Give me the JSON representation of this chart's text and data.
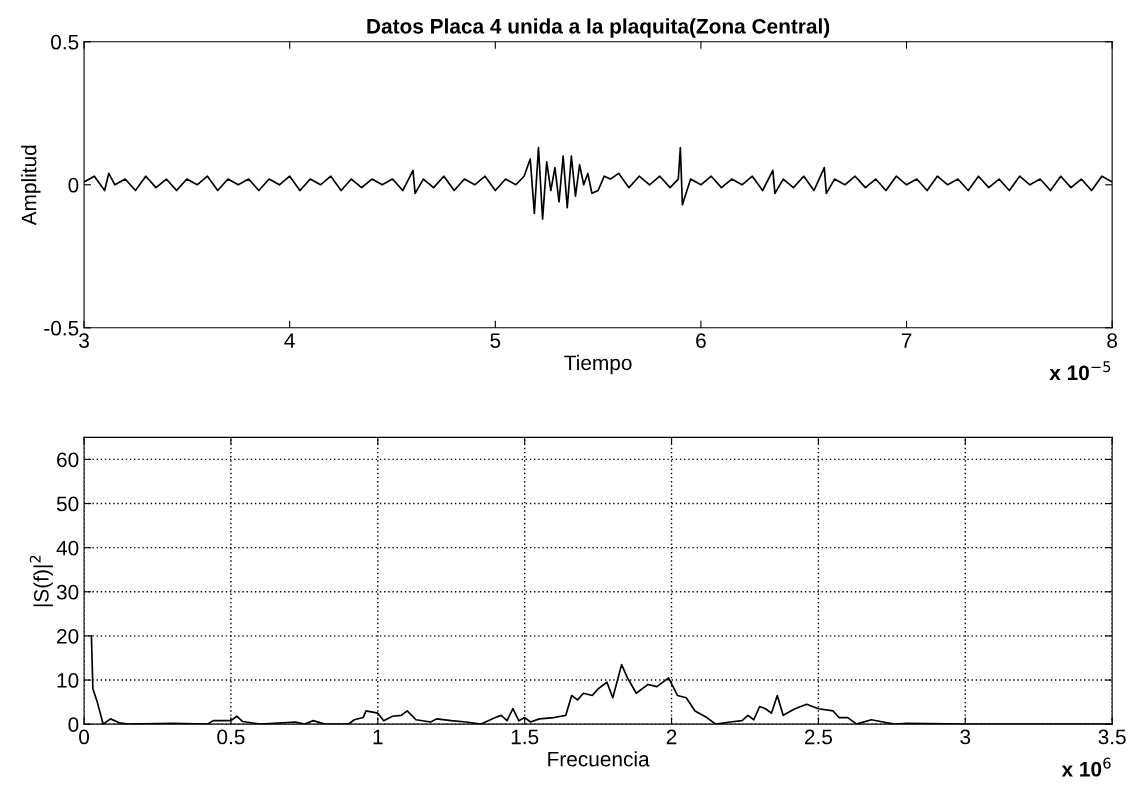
{
  "chart_data": [
    {
      "type": "line",
      "title": "Datos Placa 4 unida a la plaquita(Zona Central)",
      "xlabel": "Tiempo",
      "ylabel": "Amplitud",
      "annotations": [
        "x 10$^{−5}$"
      ],
      "xlim": [
        3,
        8
      ],
      "xticks": [
        3,
        4,
        5,
        6,
        7,
        8
      ],
      "ylim": [
        -0.5,
        0.5
      ],
      "yticks": [
        -0.5,
        0,
        0.5
      ],
      "grid": false,
      "series": [
        {
          "color": "#000000",
          "x": [
            3.0,
            3.05,
            3.1,
            3.12,
            3.15,
            3.2,
            3.25,
            3.3,
            3.35,
            3.4,
            3.45,
            3.5,
            3.55,
            3.6,
            3.65,
            3.7,
            3.75,
            3.8,
            3.85,
            3.9,
            3.95,
            4.0,
            4.05,
            4.1,
            4.15,
            4.2,
            4.25,
            4.3,
            4.35,
            4.4,
            4.45,
            4.5,
            4.55,
            4.6,
            4.61,
            4.65,
            4.7,
            4.75,
            4.8,
            4.85,
            4.9,
            4.95,
            5.0,
            5.05,
            5.1,
            5.14,
            5.17,
            5.19,
            5.21,
            5.23,
            5.25,
            5.27,
            5.29,
            5.31,
            5.33,
            5.35,
            5.37,
            5.39,
            5.41,
            5.43,
            5.45,
            5.47,
            5.5,
            5.53,
            5.56,
            5.6,
            5.65,
            5.7,
            5.75,
            5.8,
            5.85,
            5.89,
            5.9,
            5.91,
            5.95,
            6.0,
            6.05,
            6.1,
            6.15,
            6.2,
            6.25,
            6.3,
            6.35,
            6.36,
            6.4,
            6.45,
            6.5,
            6.55,
            6.6,
            6.61,
            6.65,
            6.7,
            6.75,
            6.8,
            6.85,
            6.9,
            6.95,
            7.0,
            7.05,
            7.1,
            7.15,
            7.2,
            7.25,
            7.3,
            7.35,
            7.4,
            7.45,
            7.5,
            7.55,
            7.6,
            7.65,
            7.7,
            7.75,
            7.8,
            7.85,
            7.9,
            7.95,
            8.0
          ],
          "values": [
            0.01,
            0.03,
            -0.02,
            0.04,
            0.0,
            0.02,
            -0.02,
            0.03,
            -0.01,
            0.02,
            -0.02,
            0.02,
            0.0,
            0.03,
            -0.02,
            0.02,
            0.0,
            0.02,
            -0.02,
            0.02,
            0.0,
            0.03,
            -0.02,
            0.02,
            0.0,
            0.03,
            -0.02,
            0.02,
            -0.01,
            0.02,
            0.0,
            0.02,
            -0.02,
            0.05,
            -0.03,
            0.02,
            -0.01,
            0.03,
            -0.02,
            0.02,
            0.0,
            0.03,
            -0.02,
            0.02,
            0.0,
            0.03,
            0.09,
            -0.1,
            0.13,
            -0.12,
            0.08,
            -0.02,
            0.06,
            -0.06,
            0.1,
            -0.08,
            0.1,
            -0.04,
            0.07,
            0.0,
            0.04,
            -0.03,
            -0.02,
            0.03,
            0.02,
            0.04,
            -0.01,
            0.03,
            0.0,
            0.03,
            -0.01,
            0.02,
            0.13,
            -0.07,
            0.02,
            0.0,
            0.03,
            -0.01,
            0.02,
            0.0,
            0.03,
            -0.02,
            0.05,
            -0.03,
            0.02,
            -0.01,
            0.03,
            -0.02,
            0.06,
            -0.03,
            0.02,
            0.0,
            0.03,
            -0.01,
            0.02,
            -0.02,
            0.03,
            0.0,
            0.02,
            -0.02,
            0.03,
            0.0,
            0.02,
            -0.02,
            0.03,
            -0.01,
            0.02,
            -0.02,
            0.03,
            0.0,
            0.02,
            -0.02,
            0.03,
            -0.01,
            0.02,
            -0.02,
            0.03,
            0.01
          ]
        }
      ]
    },
    {
      "type": "line",
      "xlabel": "Frecuencia",
      "ylabel": "|S(f)|$^{2}$",
      "annotations": [
        "x 10$^{6}$"
      ],
      "xlim": [
        0,
        3.5
      ],
      "xticks": [
        0,
        0.5,
        1,
        1.5,
        2,
        2.5,
        3,
        3.5
      ],
      "ylim": [
        0,
        65
      ],
      "yticks": [
        0,
        10,
        20,
        30,
        40,
        50,
        60
      ],
      "grid": true,
      "series": [
        {
          "color": "#000000",
          "x": [
            0.025,
            0.03,
            0.045,
            0.065,
            0.09,
            0.12,
            0.15,
            0.3,
            0.42,
            0.44,
            0.5,
            0.52,
            0.54,
            0.58,
            0.6,
            0.72,
            0.75,
            0.78,
            0.82,
            0.9,
            0.92,
            0.95,
            0.96,
            1.0,
            1.02,
            1.05,
            1.08,
            1.1,
            1.13,
            1.18,
            1.2,
            1.25,
            1.3,
            1.35,
            1.4,
            1.42,
            1.44,
            1.46,
            1.48,
            1.5,
            1.52,
            1.55,
            1.6,
            1.64,
            1.66,
            1.68,
            1.7,
            1.73,
            1.75,
            1.78,
            1.8,
            1.83,
            1.85,
            1.88,
            1.92,
            1.95,
            1.99,
            2.02,
            2.05,
            2.08,
            2.12,
            2.15,
            2.2,
            2.24,
            2.26,
            2.28,
            2.3,
            2.32,
            2.34,
            2.36,
            2.38,
            2.42,
            2.46,
            2.5,
            2.55,
            2.57,
            2.6,
            2.63,
            2.68,
            2.72,
            2.76,
            2.8,
            3.0,
            3.5
          ],
          "values": [
            20,
            8,
            5,
            0,
            1.2,
            0.3,
            0,
            0.2,
            0,
            0.8,
            0.8,
            1.8,
            0.6,
            0.2,
            0,
            0.5,
            0,
            0.8,
            0,
            0,
            1,
            1.5,
            3,
            2.5,
            0.8,
            1.8,
            2,
            3,
            1,
            0.5,
            1.2,
            0.8,
            0.5,
            0,
            1.5,
            2,
            0.8,
            3.5,
            0.8,
            1.5,
            0.5,
            1.2,
            1.5,
            2,
            6.5,
            5.5,
            7,
            6.5,
            8,
            9.5,
            6,
            13.5,
            10.5,
            7,
            9,
            8.5,
            10.5,
            6.5,
            6,
            3,
            1.5,
            0,
            0.5,
            0.8,
            2,
            1,
            4,
            3.5,
            2.5,
            6.5,
            2,
            3.5,
            4.5,
            3.5,
            3,
            1.5,
            1.5,
            0,
            1,
            0.5,
            0,
            0.2,
            0,
            0
          ]
        }
      ]
    }
  ]
}
